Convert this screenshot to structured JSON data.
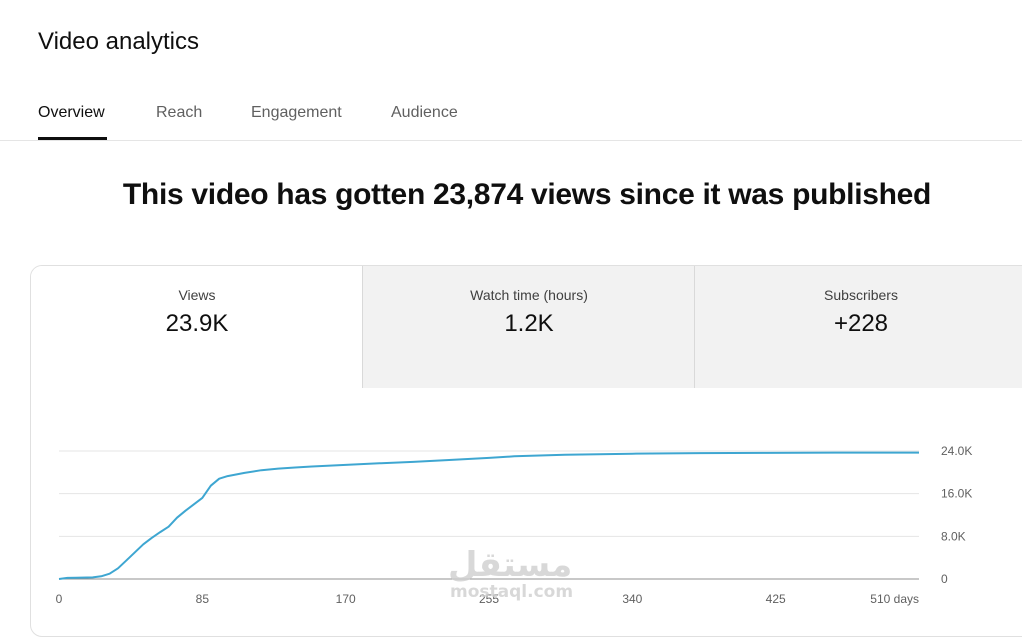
{
  "header": {
    "title": "Video analytics"
  },
  "tabs": [
    {
      "label": "Overview",
      "active": true
    },
    {
      "label": "Reach",
      "active": false
    },
    {
      "label": "Engagement",
      "active": false
    },
    {
      "label": "Audience",
      "active": false
    }
  ],
  "headline": "This video has gotten 23,874 views since it was published",
  "metrics": [
    {
      "label": "Views",
      "value": "23.9K",
      "selected": true
    },
    {
      "label": "Watch time (hours)",
      "value": "1.2K",
      "selected": false
    },
    {
      "label": "Subscribers",
      "value": "+228",
      "selected": false
    }
  ],
  "watermark": {
    "arabic": "مستقل",
    "latin": "mostaql.com"
  },
  "colors": {
    "line": "#3ea6d1",
    "grid": "#e5e5e5",
    "baseline": "#909090",
    "selected_tab": "#0f0f0f"
  },
  "chart_data": {
    "type": "line",
    "xlabel": "",
    "ylabel": "",
    "xlim": [
      0,
      510
    ],
    "ylim": [
      0,
      24000
    ],
    "x_ticks": [
      "0",
      "85",
      "170",
      "255",
      "340",
      "425",
      "510 days"
    ],
    "y_ticks": [
      "24.0K",
      "16.0K",
      "8.0K",
      "0"
    ],
    "grid": true,
    "series": [
      {
        "x": [
          0,
          5,
          10,
          20,
          25,
          30,
          35,
          40,
          45,
          50,
          55,
          60,
          65,
          70,
          75,
          80,
          85,
          90,
          95,
          100,
          110,
          120,
          130,
          140,
          150,
          170,
          190,
          210,
          230,
          255,
          270,
          300,
          340,
          380,
          420,
          460,
          510
        ],
        "values": [
          0,
          200,
          250,
          300,
          500,
          1000,
          2000,
          3500,
          5000,
          6500,
          7700,
          8800,
          9800,
          11500,
          12800,
          14000,
          15200,
          17500,
          18800,
          19300,
          19900,
          20400,
          20700,
          20900,
          21100,
          21400,
          21700,
          21950,
          22300,
          22700,
          23000,
          23300,
          23500,
          23600,
          23650,
          23700,
          23700
        ]
      }
    ]
  }
}
